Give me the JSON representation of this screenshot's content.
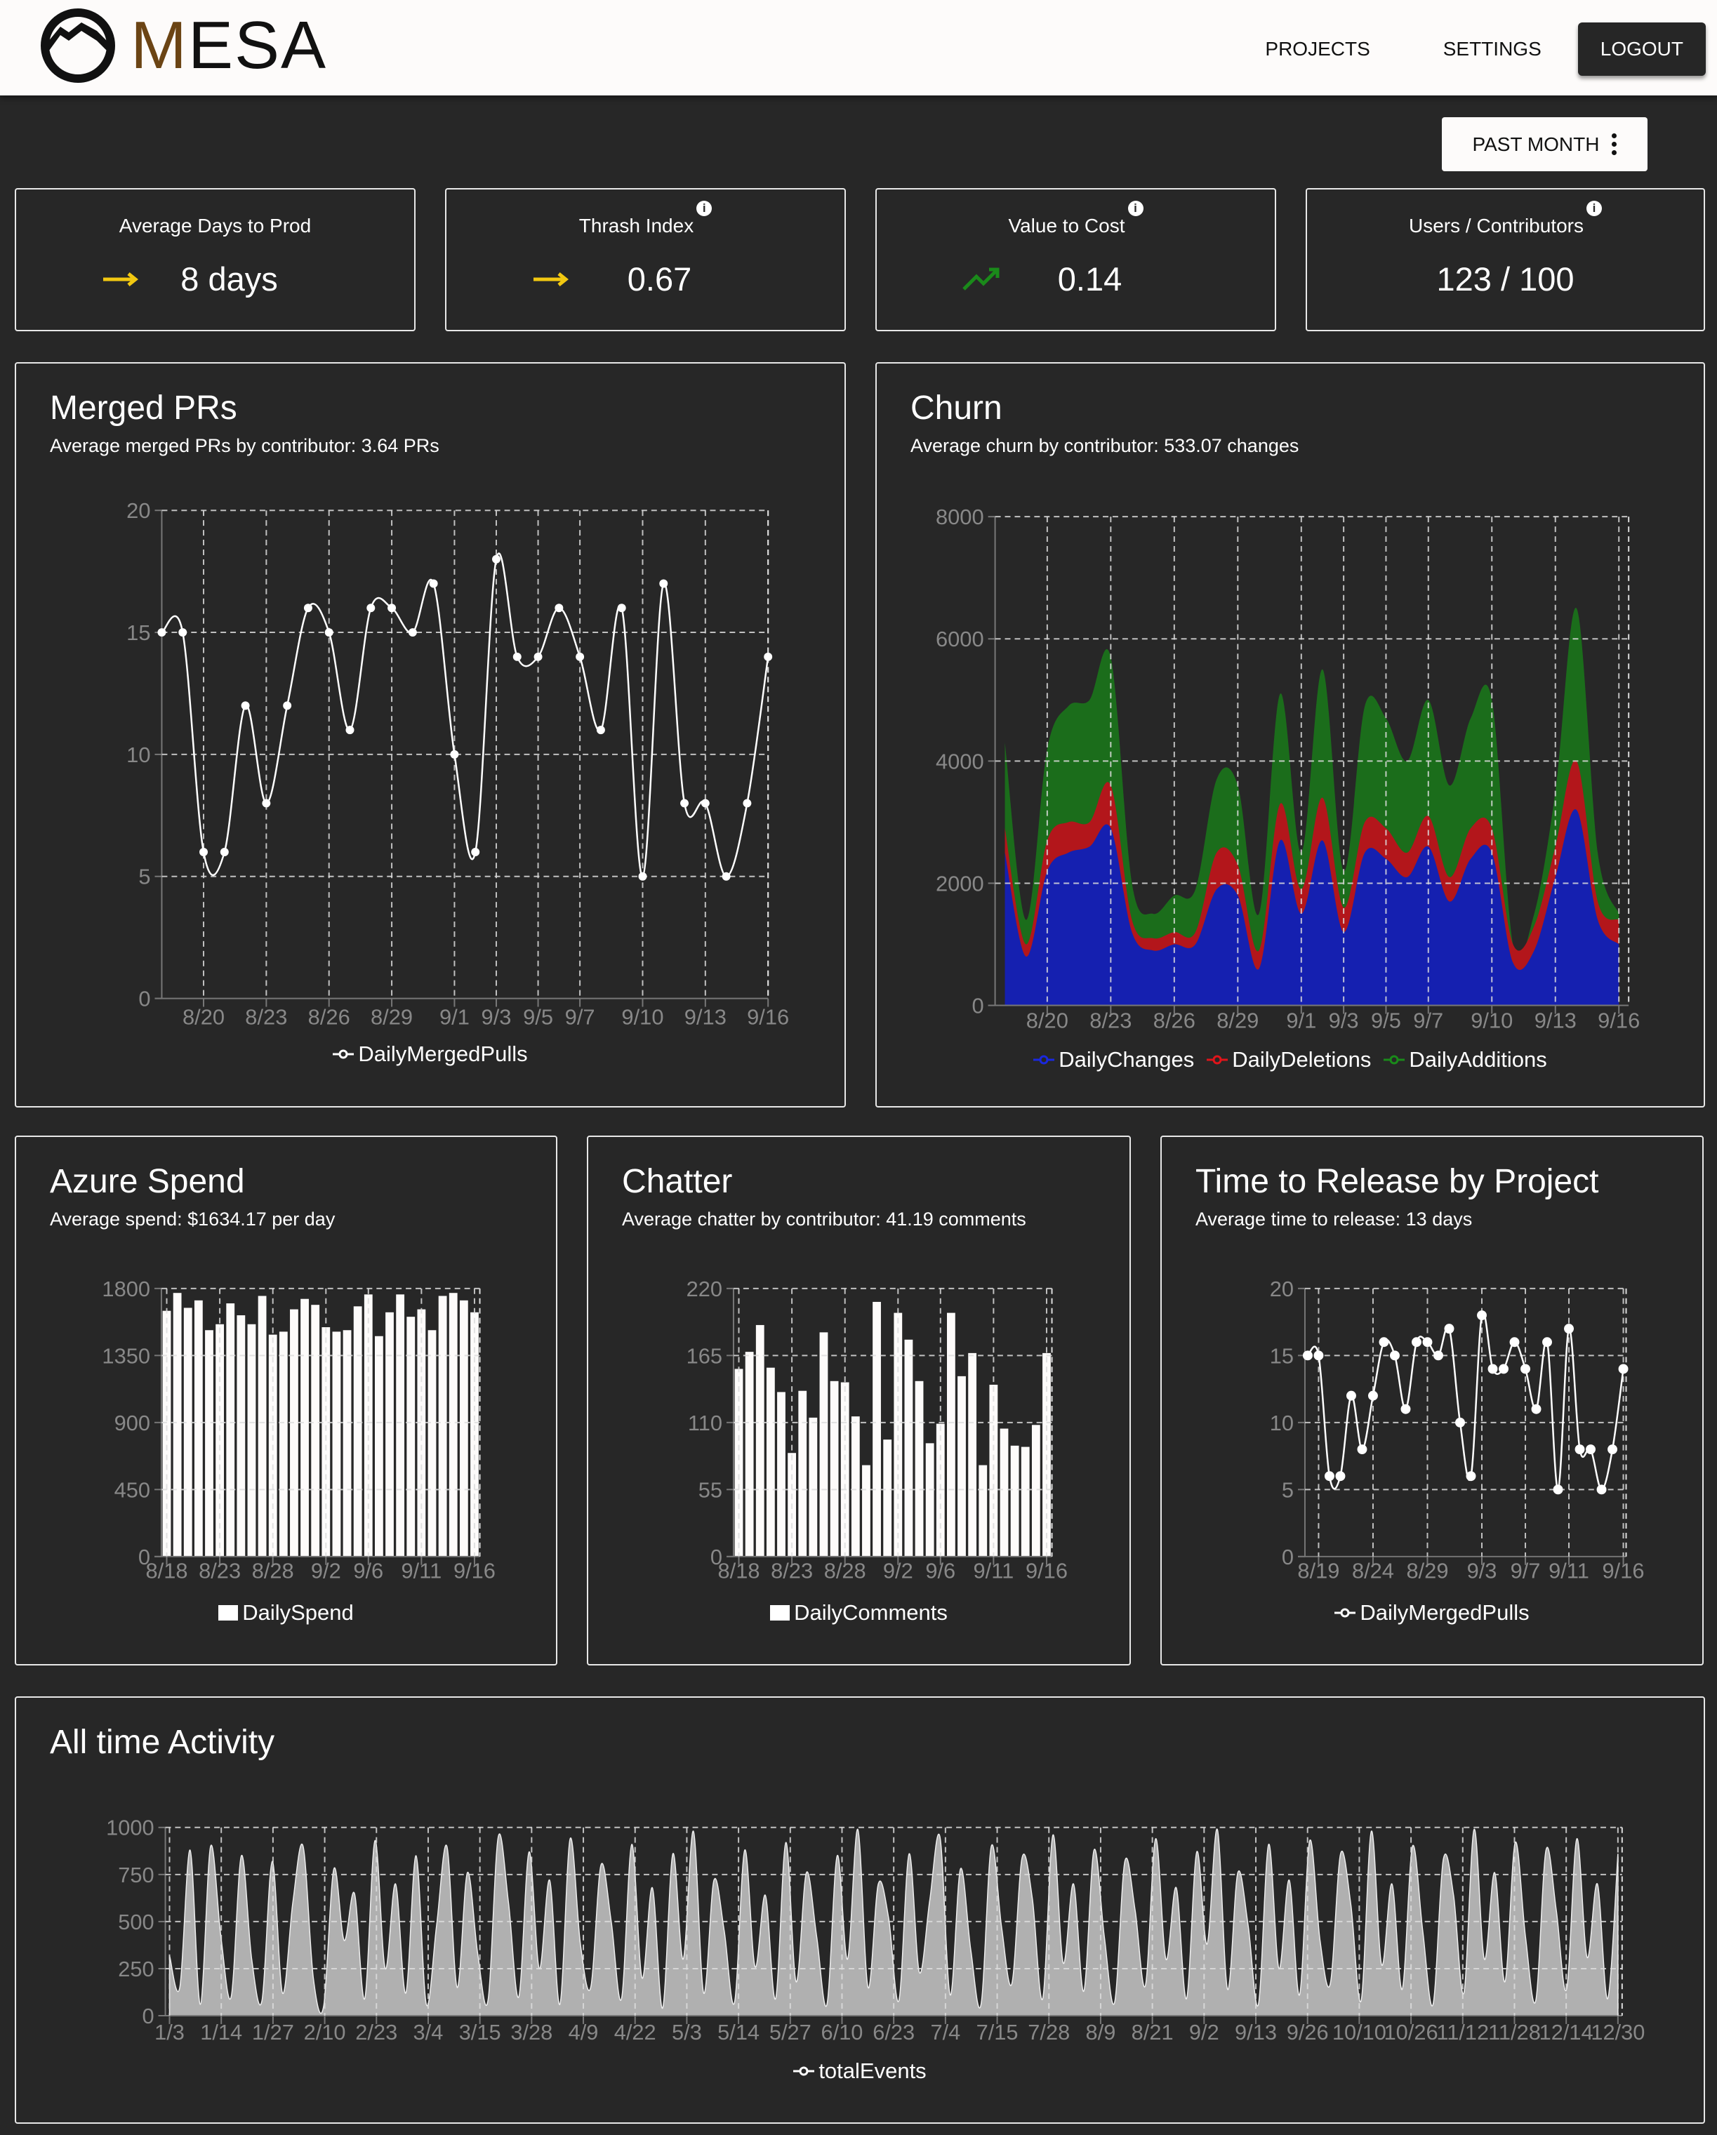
{
  "header": {
    "logo": "MESA",
    "nav": [
      "PROJECTS",
      "SETTINGS"
    ],
    "logout": "LOGOUT"
  },
  "period": "PAST MONTH",
  "colors": {
    "changes": "#1520b0",
    "deletions": "#b3161b",
    "additions": "#1b6d1b",
    "trend_flat": "#f2c811",
    "trend_up": "#1a8a1a"
  },
  "kpis": [
    {
      "title": "Average Days to Prod",
      "value": "8 days",
      "icon": "arrow-right-icon",
      "info": false
    },
    {
      "title": "Thrash Index",
      "value": "0.67",
      "icon": "arrow-right-icon",
      "info": true
    },
    {
      "title": "Value to Cost",
      "value": "0.14",
      "icon": "trending-up-icon",
      "info": true
    },
    {
      "title": "Users / Contributors",
      "value": "123 / 100",
      "icon": null,
      "info": true
    }
  ],
  "cards": {
    "merged": {
      "title": "Merged PRs",
      "subtitle": "Average merged PRs by contributor: 3.64 PRs",
      "legend": "DailyMergedPulls"
    },
    "churn": {
      "title": "Churn",
      "subtitle": "Average churn by contributor: 533.07 changes",
      "legend": [
        "DailyChanges",
        "DailyDeletions",
        "DailyAdditions"
      ]
    },
    "azure": {
      "title": "Azure Spend",
      "subtitle": "Average spend: $1634.17 per day",
      "legend": "DailySpend"
    },
    "chatter": {
      "title": "Chatter",
      "subtitle": "Average chatter by contributor: 41.19 comments",
      "legend": "DailyComments"
    },
    "release": {
      "title": "Time to Release by Project",
      "subtitle": "Average time to release: 13 days",
      "legend": "DailyMergedPulls"
    },
    "activity": {
      "title": "All time Activity",
      "legend": "totalEvents"
    }
  },
  "chart_data": [
    {
      "id": "merged",
      "type": "line",
      "x": [
        "8/18",
        "8/19",
        "8/20",
        "8/21",
        "8/22",
        "8/23",
        "8/24",
        "8/25",
        "8/26",
        "8/27",
        "8/28",
        "8/29",
        "8/30",
        "8/31",
        "9/1",
        "9/2",
        "9/3",
        "9/4",
        "9/5",
        "9/6",
        "9/7",
        "9/8",
        "9/9",
        "9/10",
        "9/11",
        "9/12",
        "9/13",
        "9/14",
        "9/15",
        "9/16"
      ],
      "series": [
        {
          "name": "DailyMergedPulls",
          "values": [
            15,
            15,
            6,
            6,
            12,
            8,
            12,
            16,
            15,
            11,
            16,
            16,
            15,
            17,
            10,
            6,
            18,
            14,
            14,
            16,
            14,
            11,
            16,
            5,
            17,
            8,
            8,
            5,
            8,
            14
          ]
        }
      ],
      "xticks": [
        "8/20",
        "8/23",
        "8/26",
        "8/29",
        "9/1",
        "9/3",
        "9/5",
        "9/7",
        "9/10",
        "9/13",
        "9/16"
      ],
      "yticks": [
        0,
        5,
        10,
        15,
        20
      ],
      "ylim": [
        0,
        20
      ]
    },
    {
      "id": "churn",
      "type": "area",
      "stacked": true,
      "x": [
        "8/18",
        "8/19",
        "8/20",
        "8/21",
        "8/22",
        "8/23",
        "8/24",
        "8/25",
        "8/26",
        "8/27",
        "8/28",
        "8/29",
        "8/30",
        "8/31",
        "9/1",
        "9/2",
        "9/3",
        "9/4",
        "9/5",
        "9/6",
        "9/7",
        "9/8",
        "9/9",
        "9/10",
        "9/11",
        "9/12",
        "9/13",
        "9/14",
        "9/15",
        "9/16"
      ],
      "series": [
        {
          "name": "DailyChanges",
          "values": [
            2500,
            800,
            2200,
            2500,
            2600,
            2900,
            1200,
            900,
            1000,
            1000,
            1900,
            1800,
            600,
            2700,
            1500,
            2700,
            1200,
            2500,
            2400,
            2100,
            2600,
            1700,
            2400,
            2500,
            700,
            900,
            2100,
            3200,
            1400,
            1000
          ]
        },
        {
          "name": "DailyDeletions",
          "values": [
            400,
            200,
            500,
            500,
            400,
            700,
            200,
            200,
            200,
            200,
            600,
            500,
            300,
            600,
            400,
            700,
            400,
            500,
            500,
            400,
            500,
            400,
            500,
            400,
            300,
            400,
            500,
            800,
            300,
            400
          ]
        },
        {
          "name": "DailyAdditions",
          "values": [
            1400,
            400,
            1500,
            1900,
            2000,
            2100,
            600,
            400,
            600,
            700,
            1200,
            1300,
            600,
            1800,
            600,
            2100,
            600,
            1900,
            1800,
            1500,
            1900,
            1500,
            1800,
            2100,
            0,
            200,
            900,
            2500,
            800,
            100
          ]
        }
      ],
      "xticks": [
        "8/20",
        "8/23",
        "8/26",
        "8/29",
        "9/1",
        "9/3",
        "9/5",
        "9/7",
        "9/10",
        "9/13",
        "9/16"
      ],
      "yticks": [
        0,
        2000,
        4000,
        6000,
        8000
      ],
      "ylim": [
        0,
        8000
      ]
    },
    {
      "id": "azure",
      "type": "bar",
      "x": [
        "8/18",
        "8/19",
        "8/20",
        "8/21",
        "8/22",
        "8/23",
        "8/24",
        "8/25",
        "8/26",
        "8/27",
        "8/28",
        "8/29",
        "8/30",
        "8/31",
        "9/1",
        "9/2",
        "9/3",
        "9/4",
        "9/5",
        "9/6",
        "9/7",
        "9/8",
        "9/9",
        "9/10",
        "9/11",
        "9/12",
        "9/13",
        "9/14",
        "9/15",
        "9/16"
      ],
      "series": [
        {
          "name": "DailySpend",
          "values": [
            1650,
            1770,
            1670,
            1720,
            1520,
            1560,
            1700,
            1620,
            1560,
            1750,
            1490,
            1510,
            1660,
            1730,
            1690,
            1540,
            1510,
            1520,
            1680,
            1760,
            1480,
            1640,
            1760,
            1610,
            1660,
            1520,
            1750,
            1770,
            1720,
            1640
          ]
        }
      ],
      "xticks": [
        "8/18",
        "8/23",
        "8/28",
        "9/2",
        "9/6",
        "9/11",
        "9/16"
      ],
      "yticks": [
        0,
        450,
        900,
        1350,
        1800
      ],
      "ylim": [
        0,
        1800
      ]
    },
    {
      "id": "chatter",
      "type": "bar",
      "x": [
        "8/18",
        "8/19",
        "8/20",
        "8/21",
        "8/22",
        "8/23",
        "8/24",
        "8/25",
        "8/26",
        "8/27",
        "8/28",
        "8/29",
        "8/30",
        "8/31",
        "9/1",
        "9/2",
        "9/3",
        "9/4",
        "9/5",
        "9/6",
        "9/7",
        "9/8",
        "9/9",
        "9/10",
        "9/11",
        "9/12",
        "9/13",
        "9/14",
        "9/15",
        "9/16"
      ],
      "series": [
        {
          "name": "DailyComments",
          "values": [
            154,
            168,
            190,
            155,
            135,
            85,
            136,
            114,
            184,
            144,
            143,
            115,
            75,
            209,
            96,
            200,
            178,
            144,
            93,
            109,
            200,
            148,
            167,
            75,
            141,
            105,
            91,
            90,
            108,
            167
          ]
        }
      ],
      "xticks": [
        "8/18",
        "8/23",
        "8/28",
        "9/2",
        "9/6",
        "9/11",
        "9/16"
      ],
      "yticks": [
        0,
        55,
        110,
        165,
        220
      ],
      "ylim": [
        0,
        220
      ]
    },
    {
      "id": "release",
      "type": "line",
      "x": [
        "8/18",
        "8/19",
        "8/20",
        "8/21",
        "8/22",
        "8/23",
        "8/24",
        "8/25",
        "8/26",
        "8/27",
        "8/28",
        "8/29",
        "8/30",
        "8/31",
        "9/1",
        "9/2",
        "9/3",
        "9/4",
        "9/5",
        "9/6",
        "9/7",
        "9/8",
        "9/9",
        "9/10",
        "9/11",
        "9/12",
        "9/13",
        "9/14",
        "9/15",
        "9/16"
      ],
      "series": [
        {
          "name": "DailyMergedPulls",
          "values": [
            15,
            15,
            6,
            6,
            12,
            8,
            12,
            16,
            15,
            11,
            16,
            16,
            15,
            17,
            10,
            6,
            18,
            14,
            14,
            16,
            14,
            11,
            16,
            5,
            17,
            8,
            8,
            5,
            8,
            14
          ]
        }
      ],
      "xticks": [
        "8/19",
        "8/24",
        "8/29",
        "9/3",
        "9/7",
        "9/11",
        "9/16"
      ],
      "yticks": [
        0,
        5,
        10,
        15,
        20
      ],
      "ylim": [
        0,
        20
      ]
    },
    {
      "id": "activity",
      "type": "area",
      "series": [
        {
          "name": "totalEvents",
          "values": [
            320,
            150,
            880,
            60,
            900,
            420,
            100,
            850,
            300,
            80,
            820,
            120,
            600,
            900,
            200,
            50,
            780,
            400,
            650,
            90,
            930,
            250,
            700,
            120,
            850,
            60,
            480,
            900,
            150,
            760,
            330,
            80,
            950,
            600,
            100,
            870,
            250,
            720,
            60,
            940,
            380,
            150,
            800,
            500,
            90,
            910,
            200,
            680,
            40,
            860,
            300,
            980,
            120,
            720,
            450,
            70,
            880,
            260,
            640,
            90,
            920,
            180,
            760,
            420,
            60,
            850,
            300,
            990,
            150,
            700,
            520,
            80,
            860,
            230,
            610,
            950,
            110,
            780,
            350,
            60,
            900,
            470,
            170,
            840,
            620,
            90,
            960,
            280,
            700,
            130,
            880,
            420,
            70,
            820,
            560,
            160,
            940,
            300,
            680,
            90,
            870,
            380,
            990,
            140,
            760,
            480,
            60,
            910,
            250,
            720,
            110,
            930,
            400,
            170,
            860,
            590,
            80,
            980,
            270,
            700,
            140,
            900,
            450,
            60,
            830,
            640,
            120,
            990,
            300,
            760,
            180,
            920,
            420,
            80,
            880,
            560,
            140,
            940,
            310,
            700,
            90,
            860
          ]
        }
      ],
      "xticks": [
        "1/3",
        "1/14",
        "1/27",
        "2/10",
        "2/23",
        "3/4",
        "3/15",
        "3/28",
        "4/9",
        "4/22",
        "5/3",
        "5/14",
        "5/27",
        "6/10",
        "6/23",
        "7/4",
        "7/15",
        "7/28",
        "8/9",
        "8/21",
        "9/2",
        "9/13",
        "9/26",
        "10/10",
        "10/26",
        "11/12",
        "11/28",
        "12/14",
        "12/30"
      ],
      "yticks": [
        0,
        250,
        500,
        750,
        1000
      ],
      "ylim": [
        0,
        1000
      ]
    }
  ]
}
